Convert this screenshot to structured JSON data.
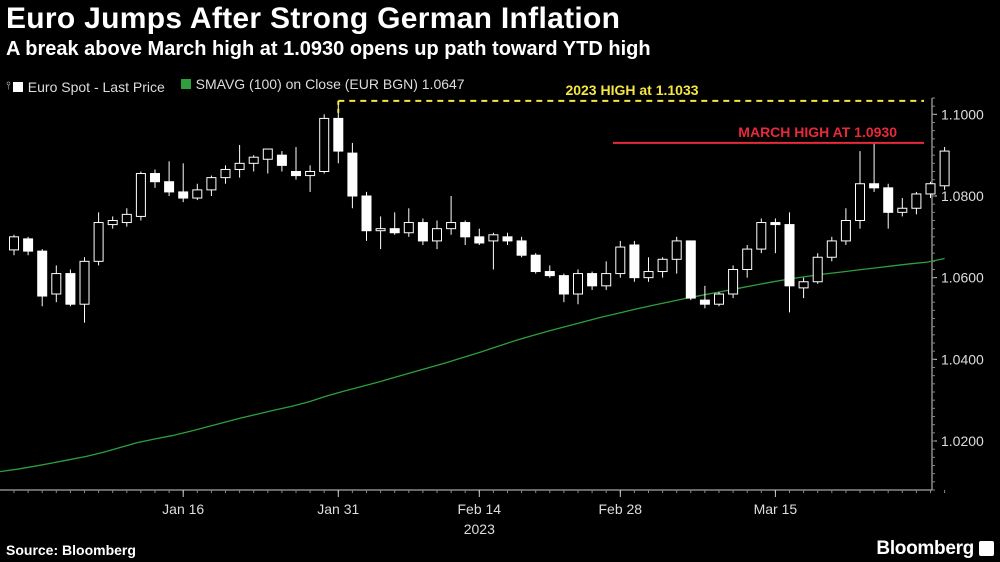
{
  "header": {
    "title": "Euro Jumps After Strong German Inflation",
    "subtitle": "A break above March high at 1.0930 opens up path toward YTD high"
  },
  "legend": {
    "price_label": "Euro Spot - Last Price",
    "sma_label": "SMAVG (100)  on Close (EUR BGN) 1.0647"
  },
  "footer": {
    "source": "Source: Bloomberg",
    "brand": "Bloomberg"
  },
  "colors": {
    "background": "#000000",
    "candle": "#ffffff",
    "sma": "#2e9e3e",
    "ytd_line": "#f5e642",
    "march_line": "#e8293b"
  },
  "chart_data": {
    "type": "candlestick",
    "title": "Euro Jumps After Strong German Inflation",
    "subtitle": "A break above March high at 1.0930 opens up path toward YTD high",
    "xlabel": "2023",
    "ylabel": "",
    "ylim": [
      1.008,
      1.104
    ],
    "y_axis_position": "right",
    "yticks": [
      "1.0200",
      "1.0400",
      "1.0600",
      "1.0800",
      "1.1000"
    ],
    "xticks": [
      {
        "label": "Jan 16",
        "index": 12
      },
      {
        "label": "Jan 31",
        "index": 23
      },
      {
        "label": "Feb 14",
        "index": 33
      },
      {
        "label": "Feb 28",
        "index": 43
      },
      {
        "label": "Mar 15",
        "index": 54
      }
    ],
    "year_label": "2023",
    "grid": false,
    "legend_position": "top-left",
    "series": [
      {
        "name": "Euro Spot - Last Price",
        "candles": [
          {
            "o": 1.0668,
            "h": 1.0705,
            "l": 1.0655,
            "c": 1.07
          },
          {
            "o": 1.0695,
            "h": 1.07,
            "l": 1.0655,
            "c": 1.0665
          },
          {
            "o": 1.0665,
            "h": 1.067,
            "l": 1.053,
            "c": 1.0555
          },
          {
            "o": 1.056,
            "h": 1.063,
            "l": 1.054,
            "c": 1.061
          },
          {
            "o": 1.061,
            "h": 1.062,
            "l": 1.053,
            "c": 1.0535
          },
          {
            "o": 1.0535,
            "h": 1.065,
            "l": 1.049,
            "c": 1.064
          },
          {
            "o": 1.064,
            "h": 1.076,
            "l": 1.063,
            "c": 1.0735
          },
          {
            "o": 1.073,
            "h": 1.075,
            "l": 1.072,
            "c": 1.074
          },
          {
            "o": 1.0735,
            "h": 1.077,
            "l": 1.0725,
            "c": 1.0755
          },
          {
            "o": 1.075,
            "h": 1.086,
            "l": 1.074,
            "c": 1.0855
          },
          {
            "o": 1.0855,
            "h": 1.0865,
            "l": 1.082,
            "c": 1.0835
          },
          {
            "o": 1.0835,
            "h": 1.0885,
            "l": 1.08,
            "c": 1.081
          },
          {
            "o": 1.081,
            "h": 1.088,
            "l": 1.0785,
            "c": 1.0795
          },
          {
            "o": 1.0795,
            "h": 1.083,
            "l": 1.079,
            "c": 1.0815
          },
          {
            "o": 1.0815,
            "h": 1.085,
            "l": 1.08,
            "c": 1.0845
          },
          {
            "o": 1.0845,
            "h": 1.0875,
            "l": 1.083,
            "c": 1.0865
          },
          {
            "o": 1.0865,
            "h": 1.0925,
            "l": 1.0845,
            "c": 1.088
          },
          {
            "o": 1.088,
            "h": 1.09,
            "l": 1.086,
            "c": 1.0895
          },
          {
            "o": 1.089,
            "h": 1.0915,
            "l": 1.0855,
            "c": 1.0915
          },
          {
            "o": 1.09,
            "h": 1.091,
            "l": 1.086,
            "c": 1.0875
          },
          {
            "o": 1.086,
            "h": 1.092,
            "l": 1.084,
            "c": 1.085
          },
          {
            "o": 1.085,
            "h": 1.0875,
            "l": 1.081,
            "c": 1.086
          },
          {
            "o": 1.086,
            "h": 1.1,
            "l": 1.0855,
            "c": 1.099
          },
          {
            "o": 1.099,
            "h": 1.1033,
            "l": 1.088,
            "c": 1.091
          },
          {
            "o": 1.0905,
            "h": 1.093,
            "l": 1.077,
            "c": 1.08
          },
          {
            "o": 1.08,
            "h": 1.081,
            "l": 1.069,
            "c": 1.0715
          },
          {
            "o": 1.0715,
            "h": 1.075,
            "l": 1.067,
            "c": 1.072
          },
          {
            "o": 1.072,
            "h": 1.076,
            "l": 1.0705,
            "c": 1.071
          },
          {
            "o": 1.071,
            "h": 1.077,
            "l": 1.07,
            "c": 1.0735
          },
          {
            "o": 1.0735,
            "h": 1.0745,
            "l": 1.068,
            "c": 1.069
          },
          {
            "o": 1.069,
            "h": 1.074,
            "l": 1.067,
            "c": 1.072
          },
          {
            "o": 1.072,
            "h": 1.08,
            "l": 1.0705,
            "c": 1.0735
          },
          {
            "o": 1.0735,
            "h": 1.074,
            "l": 1.068,
            "c": 1.07
          },
          {
            "o": 1.07,
            "h": 1.072,
            "l": 1.068,
            "c": 1.0685
          },
          {
            "o": 1.069,
            "h": 1.071,
            "l": 1.062,
            "c": 1.0705
          },
          {
            "o": 1.07,
            "h": 1.071,
            "l": 1.068,
            "c": 1.069
          },
          {
            "o": 1.069,
            "h": 1.07,
            "l": 1.065,
            "c": 1.0655
          },
          {
            "o": 1.0655,
            "h": 1.066,
            "l": 1.061,
            "c": 1.0615
          },
          {
            "o": 1.0615,
            "h": 1.063,
            "l": 1.06,
            "c": 1.0605
          },
          {
            "o": 1.0605,
            "h": 1.061,
            "l": 1.054,
            "c": 1.056
          },
          {
            "o": 1.056,
            "h": 1.062,
            "l": 1.0535,
            "c": 1.061
          },
          {
            "o": 1.061,
            "h": 1.0615,
            "l": 1.057,
            "c": 1.058
          },
          {
            "o": 1.058,
            "h": 1.064,
            "l": 1.057,
            "c": 1.061
          },
          {
            "o": 1.061,
            "h": 1.069,
            "l": 1.06,
            "c": 1.0675
          },
          {
            "o": 1.068,
            "h": 1.069,
            "l": 1.059,
            "c": 1.06
          },
          {
            "o": 1.06,
            "h": 1.065,
            "l": 1.059,
            "c": 1.0615
          },
          {
            "o": 1.0615,
            "h": 1.065,
            "l": 1.06,
            "c": 1.0645
          },
          {
            "o": 1.0645,
            "h": 1.07,
            "l": 1.061,
            "c": 1.069
          },
          {
            "o": 1.069,
            "h": 1.069,
            "l": 1.0545,
            "c": 1.055
          },
          {
            "o": 1.0545,
            "h": 1.058,
            "l": 1.0525,
            "c": 1.0535
          },
          {
            "o": 1.0535,
            "h": 1.0565,
            "l": 1.053,
            "c": 1.056
          },
          {
            "o": 1.056,
            "h": 1.063,
            "l": 1.055,
            "c": 1.062
          },
          {
            "o": 1.062,
            "h": 1.068,
            "l": 1.06,
            "c": 1.067
          },
          {
            "o": 1.067,
            "h": 1.0745,
            "l": 1.066,
            "c": 1.0735
          },
          {
            "o": 1.0735,
            "h": 1.0745,
            "l": 1.066,
            "c": 1.073
          },
          {
            "o": 1.073,
            "h": 1.076,
            "l": 1.0515,
            "c": 1.058
          },
          {
            "o": 1.0575,
            "h": 1.06,
            "l": 1.055,
            "c": 1.059
          },
          {
            "o": 1.059,
            "h": 1.066,
            "l": 1.0585,
            "c": 1.065
          },
          {
            "o": 1.065,
            "h": 1.07,
            "l": 1.064,
            "c": 1.069
          },
          {
            "o": 1.069,
            "h": 1.077,
            "l": 1.068,
            "c": 1.074
          },
          {
            "o": 1.074,
            "h": 1.091,
            "l": 1.072,
            "c": 1.083
          },
          {
            "o": 1.083,
            "h": 1.093,
            "l": 1.081,
            "c": 1.082
          },
          {
            "o": 1.082,
            "h": 1.083,
            "l": 1.072,
            "c": 1.076
          },
          {
            "o": 1.076,
            "h": 1.0795,
            "l": 1.075,
            "c": 1.077
          },
          {
            "o": 1.077,
            "h": 1.081,
            "l": 1.0755,
            "c": 1.0805
          },
          {
            "o": 1.0805,
            "h": 1.0835,
            "l": 1.0795,
            "c": 1.083
          },
          {
            "o": 1.0825,
            "h": 1.092,
            "l": 1.0815,
            "c": 1.091
          }
        ]
      },
      {
        "name": "SMAVG (100)  on Close (EUR BGN) 1.0647",
        "line": [
          1.0125,
          1.0131,
          1.0138,
          1.0146,
          1.0154,
          1.0162,
          1.0172,
          1.0184,
          1.0196,
          1.0205,
          1.0213,
          1.0223,
          1.0234,
          1.0245,
          1.0256,
          1.0266,
          1.0276,
          1.0285,
          1.0296,
          1.031,
          1.0322,
          1.0333,
          1.0344,
          1.0356,
          1.0368,
          1.038,
          1.0392,
          1.0405,
          1.0418,
          1.0432,
          1.0446,
          1.0458,
          1.047,
          1.0481,
          1.0492,
          1.0503,
          1.0513,
          1.0523,
          1.0532,
          1.0541,
          1.055,
          1.0558,
          1.0566,
          1.0574,
          1.0582,
          1.059,
          1.0597,
          1.0603,
          1.0609,
          1.0614,
          1.0619,
          1.0624,
          1.0629,
          1.0634,
          1.0638,
          1.0647
        ]
      }
    ],
    "annotations": [
      {
        "text": "2023 HIGH at 1.1033",
        "value": 1.1033,
        "style": "dashed",
        "color": "#f5e642",
        "from_index": 23
      },
      {
        "text": "MARCH HIGH AT 1.0930",
        "value": 1.093,
        "style": "solid",
        "color": "#e8293b",
        "from_index": 44
      }
    ]
  }
}
